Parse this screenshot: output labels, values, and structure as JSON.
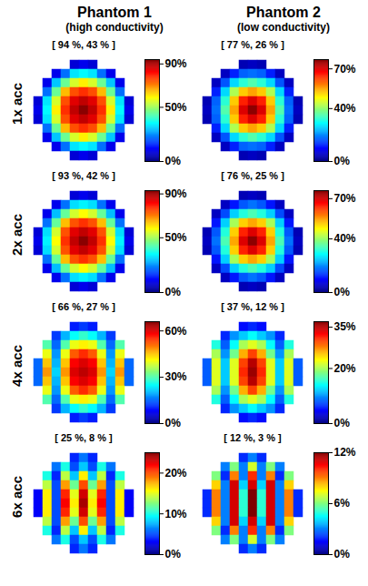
{
  "columns": [
    {
      "title": "Phantom 1",
      "subtitle": "(high conductivity)"
    },
    {
      "title": "Phantom 2",
      "subtitle": "(low conductivity)"
    }
  ],
  "rows": [
    "1x acc",
    "2x acc",
    "4x acc",
    "6x acc"
  ],
  "chart_data": [
    {
      "type": "heatmap",
      "title": "[ 94 %, 43 % ]",
      "colorbar": {
        "range": [
          0,
          94
        ],
        "ticks": [
          {
            "value": 0,
            "label": "0%"
          },
          {
            "value": 50,
            "label": "50%"
          },
          {
            "value": 90,
            "label": "90%"
          }
        ]
      },
      "cells": [
        [
          null,
          null,
          null,
          null,
          8,
          10,
          8,
          null,
          null,
          null,
          null
        ],
        [
          null,
          null,
          10,
          22,
          33,
          35,
          33,
          22,
          10,
          null,
          null
        ],
        [
          null,
          10,
          30,
          45,
          55,
          60,
          55,
          45,
          30,
          10,
          null
        ],
        [
          null,
          22,
          45,
          65,
          75,
          78,
          75,
          65,
          45,
          22,
          null
        ],
        [
          8,
          33,
          55,
          75,
          85,
          88,
          85,
          75,
          55,
          33,
          8
        ],
        [
          10,
          35,
          60,
          78,
          88,
          93,
          88,
          78,
          60,
          35,
          10
        ],
        [
          8,
          33,
          55,
          75,
          85,
          88,
          85,
          75,
          55,
          33,
          8
        ],
        [
          null,
          22,
          45,
          65,
          75,
          78,
          75,
          65,
          45,
          22,
          null
        ],
        [
          null,
          10,
          30,
          45,
          55,
          60,
          55,
          45,
          30,
          10,
          null
        ],
        [
          null,
          null,
          10,
          22,
          33,
          35,
          33,
          22,
          10,
          null,
          null
        ],
        [
          null,
          null,
          null,
          null,
          8,
          10,
          8,
          null,
          null,
          null,
          null
        ]
      ]
    },
    {
      "type": "heatmap",
      "title": "[ 77 %, 26 % ]",
      "colorbar": {
        "range": [
          0,
          77
        ],
        "ticks": [
          {
            "value": 0,
            "label": "0%"
          },
          {
            "value": 40,
            "label": "40%"
          },
          {
            "value": 70,
            "label": "70%"
          }
        ]
      },
      "cells": [
        [
          null,
          null,
          null,
          null,
          4,
          5,
          4,
          null,
          null,
          null,
          null
        ],
        [
          null,
          null,
          5,
          12,
          17,
          18,
          17,
          12,
          5,
          null,
          null
        ],
        [
          null,
          5,
          16,
          26,
          32,
          35,
          32,
          26,
          16,
          5,
          null
        ],
        [
          null,
          12,
          26,
          42,
          52,
          55,
          52,
          42,
          26,
          12,
          null
        ],
        [
          4,
          17,
          32,
          52,
          65,
          70,
          65,
          52,
          32,
          17,
          4
        ],
        [
          5,
          18,
          35,
          55,
          70,
          76,
          70,
          55,
          35,
          18,
          5
        ],
        [
          4,
          17,
          32,
          52,
          65,
          70,
          65,
          52,
          32,
          17,
          4
        ],
        [
          null,
          12,
          26,
          42,
          52,
          55,
          52,
          42,
          26,
          12,
          null
        ],
        [
          null,
          5,
          16,
          26,
          32,
          35,
          32,
          26,
          16,
          5,
          null
        ],
        [
          null,
          null,
          5,
          12,
          17,
          18,
          17,
          12,
          5,
          null,
          null
        ],
        [
          null,
          null,
          null,
          null,
          4,
          5,
          4,
          null,
          null,
          null,
          null
        ]
      ]
    },
    {
      "type": "heatmap",
      "title": "[ 93 %, 42 % ]",
      "colorbar": {
        "range": [
          0,
          93
        ],
        "ticks": [
          {
            "value": 0,
            "label": "0%"
          },
          {
            "value": 50,
            "label": "50%"
          },
          {
            "value": 90,
            "label": "90%"
          }
        ]
      },
      "cells": [
        [
          null,
          null,
          null,
          null,
          8,
          10,
          8,
          null,
          null,
          null,
          null
        ],
        [
          null,
          null,
          10,
          22,
          32,
          34,
          32,
          22,
          10,
          null,
          null
        ],
        [
          null,
          10,
          29,
          44,
          54,
          58,
          54,
          44,
          29,
          10,
          null
        ],
        [
          null,
          22,
          44,
          64,
          74,
          77,
          74,
          64,
          44,
          22,
          null
        ],
        [
          8,
          32,
          54,
          74,
          84,
          87,
          84,
          74,
          54,
          32,
          8
        ],
        [
          10,
          34,
          58,
          77,
          87,
          92,
          87,
          77,
          58,
          34,
          10
        ],
        [
          8,
          32,
          54,
          74,
          84,
          87,
          84,
          74,
          54,
          32,
          8
        ],
        [
          null,
          22,
          44,
          64,
          74,
          77,
          74,
          64,
          44,
          22,
          null
        ],
        [
          null,
          10,
          29,
          44,
          54,
          58,
          54,
          44,
          29,
          10,
          null
        ],
        [
          null,
          null,
          10,
          22,
          32,
          34,
          32,
          22,
          10,
          null,
          null
        ],
        [
          null,
          null,
          null,
          null,
          8,
          10,
          8,
          null,
          null,
          null,
          null
        ]
      ]
    },
    {
      "type": "heatmap",
      "title": "[ 76 %, 25 % ]",
      "colorbar": {
        "range": [
          0,
          76
        ],
        "ticks": [
          {
            "value": 0,
            "label": "0%"
          },
          {
            "value": 40,
            "label": "40%"
          },
          {
            "value": 70,
            "label": "70%"
          }
        ]
      },
      "cells": [
        [
          null,
          null,
          null,
          null,
          4,
          5,
          4,
          null,
          null,
          null,
          null
        ],
        [
          null,
          null,
          5,
          11,
          16,
          18,
          16,
          11,
          5,
          null,
          null
        ],
        [
          null,
          5,
          15,
          25,
          31,
          34,
          31,
          25,
          15,
          5,
          null
        ],
        [
          null,
          11,
          25,
          41,
          51,
          54,
          51,
          41,
          25,
          11,
          null
        ],
        [
          4,
          16,
          31,
          51,
          64,
          69,
          64,
          51,
          31,
          16,
          4
        ],
        [
          5,
          18,
          34,
          54,
          69,
          75,
          69,
          54,
          34,
          18,
          5
        ],
        [
          4,
          16,
          31,
          51,
          64,
          69,
          64,
          51,
          31,
          16,
          4
        ],
        [
          null,
          11,
          25,
          41,
          51,
          54,
          51,
          41,
          25,
          11,
          null
        ],
        [
          null,
          5,
          15,
          25,
          31,
          34,
          31,
          25,
          15,
          5,
          null
        ],
        [
          null,
          null,
          5,
          11,
          16,
          18,
          16,
          11,
          5,
          null,
          null
        ],
        [
          null,
          null,
          null,
          null,
          4,
          5,
          4,
          null,
          null,
          null,
          null
        ]
      ]
    },
    {
      "type": "heatmap",
      "title": "[ 66 %, 27 % ]",
      "colorbar": {
        "range": [
          0,
          66
        ],
        "ticks": [
          {
            "value": 0,
            "label": "0%"
          },
          {
            "value": 30,
            "label": "30%"
          },
          {
            "value": 60,
            "label": "60%"
          }
        ]
      },
      "cells": [
        [
          null,
          null,
          null,
          null,
          10,
          12,
          10,
          null,
          null,
          null,
          null
        ],
        [
          null,
          null,
          12,
          20,
          25,
          28,
          25,
          20,
          12,
          null,
          null
        ],
        [
          null,
          30,
          15,
          30,
          40,
          42,
          40,
          30,
          15,
          30,
          null
        ],
        [
          null,
          40,
          18,
          40,
          52,
          55,
          52,
          40,
          18,
          40,
          null
        ],
        [
          15,
          45,
          20,
          45,
          58,
          60,
          58,
          45,
          20,
          45,
          15
        ],
        [
          15,
          48,
          22,
          48,
          60,
          62,
          60,
          48,
          22,
          48,
          15
        ],
        [
          15,
          45,
          20,
          45,
          58,
          60,
          58,
          45,
          20,
          45,
          15
        ],
        [
          null,
          40,
          18,
          40,
          52,
          55,
          52,
          40,
          18,
          40,
          null
        ],
        [
          null,
          30,
          15,
          30,
          40,
          42,
          40,
          30,
          15,
          30,
          null
        ],
        [
          null,
          null,
          12,
          20,
          25,
          28,
          25,
          20,
          12,
          null,
          null
        ],
        [
          null,
          null,
          null,
          null,
          10,
          12,
          10,
          null,
          null,
          null,
          null
        ]
      ]
    },
    {
      "type": "heatmap",
      "title": "[ 37 %, 12 % ]",
      "colorbar": {
        "range": [
          0,
          37
        ],
        "ticks": [
          {
            "value": 0,
            "label": "0%"
          },
          {
            "value": 20,
            "label": "20%"
          },
          {
            "value": 35,
            "label": "35%"
          }
        ]
      },
      "cells": [
        [
          null,
          null,
          null,
          null,
          5,
          6,
          5,
          null,
          null,
          null,
          null
        ],
        [
          null,
          null,
          6,
          10,
          12,
          14,
          12,
          10,
          6,
          null,
          null
        ],
        [
          null,
          15,
          8,
          14,
          20,
          22,
          20,
          14,
          8,
          15,
          null
        ],
        [
          null,
          20,
          10,
          18,
          26,
          30,
          26,
          18,
          10,
          20,
          null
        ],
        [
          8,
          22,
          12,
          22,
          30,
          35,
          30,
          22,
          12,
          22,
          8
        ],
        [
          8,
          22,
          12,
          22,
          31,
          36,
          31,
          22,
          12,
          22,
          8
        ],
        [
          8,
          22,
          12,
          22,
          30,
          35,
          30,
          22,
          12,
          22,
          8
        ],
        [
          null,
          20,
          10,
          18,
          26,
          30,
          26,
          18,
          10,
          20,
          null
        ],
        [
          null,
          15,
          8,
          14,
          20,
          22,
          20,
          14,
          8,
          15,
          null
        ],
        [
          null,
          null,
          6,
          10,
          12,
          14,
          12,
          10,
          6,
          null,
          null
        ],
        [
          null,
          null,
          null,
          null,
          5,
          6,
          5,
          null,
          null,
          null,
          null
        ]
      ]
    },
    {
      "type": "heatmap",
      "title": "[ 25 %, 8 % ]",
      "colorbar": {
        "range": [
          0,
          25
        ],
        "ticks": [
          {
            "value": 0,
            "label": "0%"
          },
          {
            "value": 10,
            "label": "10%"
          },
          {
            "value": 20,
            "label": "20%"
          }
        ]
      },
      "cells": [
        [
          null,
          null,
          null,
          null,
          4,
          6,
          4,
          null,
          null,
          null,
          null
        ],
        [
          null,
          null,
          6,
          10,
          5,
          8,
          5,
          10,
          6,
          null,
          null
        ],
        [
          null,
          10,
          4,
          14,
          8,
          16,
          8,
          14,
          4,
          10,
          null
        ],
        [
          null,
          14,
          5,
          18,
          12,
          20,
          12,
          18,
          5,
          14,
          null
        ],
        [
          3,
          16,
          5,
          21,
          15,
          23,
          15,
          21,
          5,
          16,
          3
        ],
        [
          3,
          16,
          5,
          22,
          16,
          24,
          16,
          22,
          5,
          16,
          3
        ],
        [
          3,
          16,
          5,
          21,
          15,
          23,
          15,
          21,
          5,
          16,
          3
        ],
        [
          null,
          14,
          5,
          18,
          12,
          20,
          12,
          18,
          5,
          14,
          null
        ],
        [
          null,
          10,
          4,
          14,
          8,
          16,
          8,
          14,
          4,
          10,
          null
        ],
        [
          null,
          null,
          6,
          10,
          5,
          8,
          5,
          10,
          6,
          null,
          null
        ],
        [
          null,
          null,
          null,
          null,
          4,
          6,
          4,
          null,
          null,
          null,
          null
        ]
      ]
    },
    {
      "type": "heatmap",
      "title": "[ 12 %, 3 % ]",
      "colorbar": {
        "range": [
          0,
          12
        ],
        "ticks": [
          {
            "value": 0,
            "label": "0%"
          },
          {
            "value": 6,
            "label": "6%"
          },
          {
            "value": 12,
            "label": "12%"
          }
        ]
      },
      "cells": [
        [
          null,
          null,
          null,
          null,
          2,
          3,
          2,
          null,
          null,
          null,
          null
        ],
        [
          null,
          null,
          3,
          6,
          3,
          7,
          3,
          6,
          3,
          null,
          null
        ],
        [
          null,
          6,
          2,
          9,
          3,
          10,
          3,
          9,
          2,
          6,
          null
        ],
        [
          null,
          8,
          3,
          11,
          4,
          11,
          4,
          11,
          3,
          8,
          null
        ],
        [
          2,
          9,
          3,
          11,
          5,
          12,
          5,
          11,
          3,
          9,
          2
        ],
        [
          2,
          9,
          3,
          11,
          5,
          12,
          5,
          11,
          3,
          9,
          2
        ],
        [
          2,
          9,
          3,
          11,
          5,
          12,
          5,
          11,
          3,
          9,
          2
        ],
        [
          null,
          8,
          3,
          11,
          4,
          11,
          4,
          11,
          3,
          8,
          null
        ],
        [
          null,
          6,
          2,
          9,
          3,
          10,
          3,
          9,
          2,
          6,
          null
        ],
        [
          null,
          null,
          3,
          6,
          3,
          7,
          3,
          6,
          3,
          null,
          null
        ],
        [
          null,
          null,
          null,
          null,
          2,
          3,
          2,
          null,
          null,
          null,
          null
        ]
      ]
    }
  ]
}
